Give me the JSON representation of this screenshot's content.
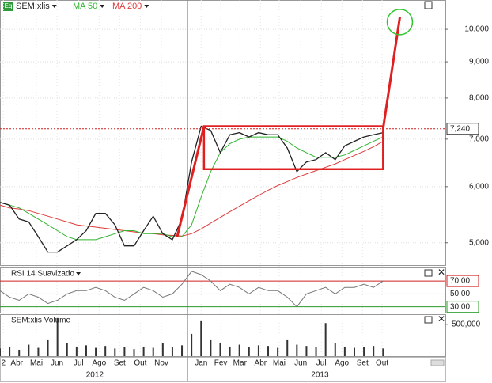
{
  "chart_data": [
    {
      "type": "line",
      "x": [
        0,
        2,
        4,
        6,
        8,
        10,
        12,
        14,
        16,
        18,
        20,
        22,
        24,
        26,
        28,
        30,
        32,
        34,
        36,
        38,
        40,
        42,
        44,
        46,
        48,
        50,
        52,
        54,
        56,
        58,
        60,
        62,
        64,
        66,
        68,
        70,
        72,
        74,
        76,
        78,
        80
      ],
      "xlim": [
        0,
        93
      ],
      "series": [
        {
          "name": "SEM:xlis",
          "color": "#222222",
          "values": [
            5700,
            5650,
            5400,
            5350,
            5100,
            4850,
            4850,
            4950,
            5050,
            5200,
            5500,
            5500,
            5300,
            4950,
            4950,
            5200,
            5450,
            5150,
            5050,
            5400,
            6500,
            7300,
            7200,
            6700,
            7100,
            7150,
            7050,
            7150,
            7100,
            7100,
            6800,
            6300,
            6500,
            6550,
            6700,
            6550,
            6850,
            6950,
            7050,
            7100,
            7150
          ]
        },
        {
          "name": "MA 50",
          "color": "#2fb52f",
          "values": [
            5700,
            5650,
            5600,
            5500,
            5400,
            5300,
            5200,
            5100,
            5050,
            5050,
            5050,
            5100,
            5150,
            5200,
            5200,
            5150,
            5150,
            5150,
            5100,
            5100,
            5300,
            5800,
            6300,
            6700,
            6900,
            7000,
            7050,
            7050,
            7050,
            7050,
            6950,
            6800,
            6700,
            6600,
            6600,
            6600,
            6650,
            6750,
            6850,
            6950,
            7050
          ]
        },
        {
          "name": "MA 200",
          "color": "#e03a3a",
          "values": [
            5650,
            5600,
            5580,
            5550,
            5500,
            5450,
            5400,
            5350,
            5300,
            5280,
            5260,
            5240,
            5220,
            5200,
            5180,
            5160,
            5150,
            5130,
            5120,
            5110,
            5150,
            5230,
            5330,
            5430,
            5530,
            5630,
            5730,
            5830,
            5930,
            6020,
            6100,
            6180,
            6250,
            6320,
            6390,
            6460,
            6550,
            6640,
            6730,
            6830,
            6950
          ]
        }
      ],
      "icon": "Eq",
      "log_scale": true,
      "ylim": [
        4650,
        11000
      ],
      "yticks": [
        {
          "value": 5000,
          "label": "5,000"
        },
        {
          "value": 6000,
          "label": "6,000"
        },
        {
          "value": 7000,
          "label": "7,000"
        },
        {
          "value": 8000,
          "label": "8,000"
        },
        {
          "value": 9000,
          "label": "9,000"
        },
        {
          "value": 10000,
          "label": "10,000"
        }
      ],
      "last_price": {
        "value": 7240,
        "label": "7,240"
      },
      "xticks": [
        {
          "value": 0.7,
          "label": "2"
        },
        {
          "value": 3.5,
          "label": "Abr"
        },
        {
          "value": 7.6,
          "label": "Mai"
        },
        {
          "value": 11.9,
          "label": "Jun"
        },
        {
          "value": 16.4,
          "label": "Jul"
        },
        {
          "value": 20.7,
          "label": "Ago"
        },
        {
          "value": 25,
          "label": "Set"
        },
        {
          "value": 29.3,
          "label": "Out"
        },
        {
          "value": 33.7,
          "label": "Nov"
        },
        {
          "value": 42,
          "label": "Jan"
        },
        {
          "value": 46.1,
          "label": "Fev"
        },
        {
          "value": 50.1,
          "label": "Mar"
        },
        {
          "value": 54.4,
          "label": "Abr"
        },
        {
          "value": 58.3,
          "label": "Mai"
        },
        {
          "value": 62.8,
          "label": "Jun"
        },
        {
          "value": 67.1,
          "label": "Jul"
        },
        {
          "value": 71.4,
          "label": "Ago"
        },
        {
          "value": 75.7,
          "label": "Set"
        },
        {
          "value": 79.8,
          "label": "Out"
        }
      ],
      "year_ticks": [
        {
          "value": 19.8,
          "label": "2012"
        },
        {
          "value": 66.8,
          "label": "2013"
        }
      ],
      "breakout_line": {
        "x": [
          37,
          42.6
        ],
        "values": [
          5100,
          7300
        ]
      },
      "range_box": {
        "x": [
          42.6,
          80
        ],
        "values": [
          6350,
          7300
        ]
      },
      "projection": {
        "x": [
          80,
          83.5
        ],
        "values": [
          7240,
          10400
        ]
      }
    },
    {
      "type": "line",
      "name": "RSI 14 Suavizado",
      "color": "#777777",
      "values": [
        55,
        45,
        40,
        50,
        45,
        35,
        40,
        50,
        55,
        55,
        60,
        55,
        45,
        40,
        50,
        60,
        55,
        45,
        50,
        65,
        85,
        80,
        70,
        55,
        65,
        60,
        50,
        60,
        55,
        55,
        45,
        30,
        50,
        55,
        60,
        50,
        60,
        60,
        65,
        60,
        70
      ],
      "ylim": [
        21,
        91
      ],
      "yticks": [
        {
          "value": 30,
          "label": "30,00"
        },
        {
          "value": 50,
          "label": "50,00"
        },
        {
          "value": 70,
          "label": "70,00"
        }
      ]
    },
    {
      "type": "bar",
      "name": "SEM:xlis Volume",
      "color": "#333333",
      "values": [
        120000,
        150000,
        100000,
        180000,
        130000,
        250000,
        600000,
        200000,
        150000,
        170000,
        130000,
        160000,
        120000,
        140000,
        110000,
        150000,
        130000,
        200000,
        150000,
        170000,
        350000,
        550000,
        250000,
        200000,
        150000,
        180000,
        140000,
        170000,
        160000,
        130000,
        250000,
        180000,
        160000,
        140000,
        520000,
        200000,
        150000,
        130000,
        140000,
        160000,
        120000
      ],
      "ylim": [
        0,
        660000
      ],
      "yticks": [
        {
          "value": 500000,
          "label": "500,000"
        }
      ]
    }
  ]
}
